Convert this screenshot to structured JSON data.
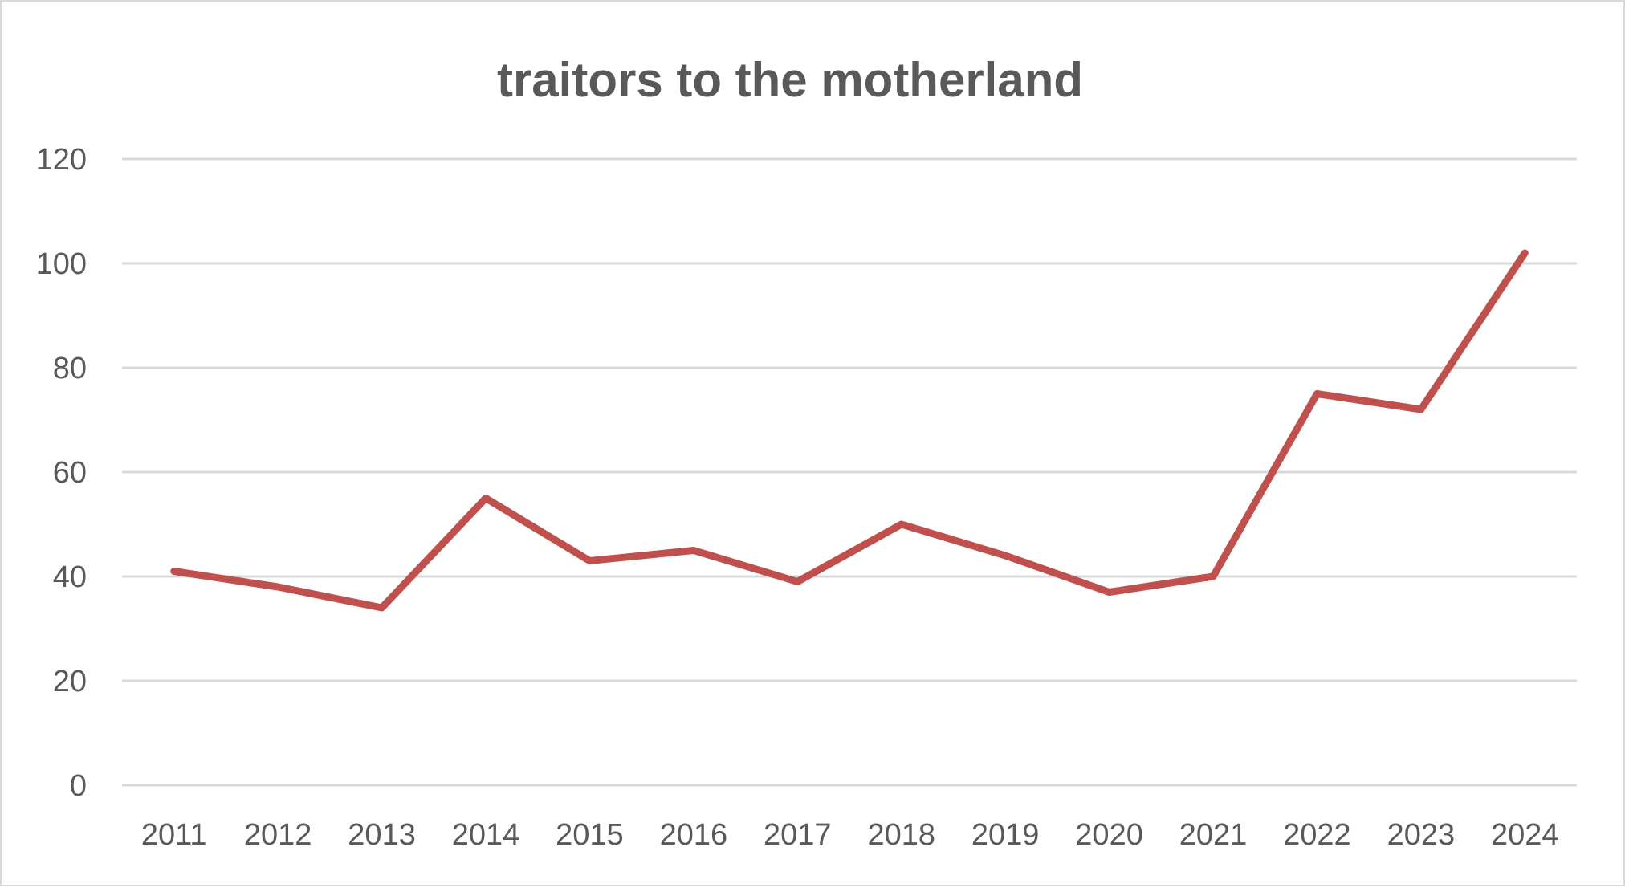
{
  "chart_data": {
    "type": "line",
    "title": "traitors to the motherland",
    "xlabel": "",
    "ylabel": "",
    "categories": [
      "2011",
      "2012",
      "2013",
      "2014",
      "2015",
      "2016",
      "2017",
      "2018",
      "2019",
      "2020",
      "2021",
      "2022",
      "2023",
      "2024"
    ],
    "series": [
      {
        "name": "traitors to the motherland",
        "color": "#C0504D",
        "values": [
          41,
          38,
          34,
          55,
          43,
          45,
          39,
          50,
          44,
          37,
          40,
          75,
          72,
          102
        ]
      }
    ],
    "ylim": [
      0,
      120
    ],
    "yticks": [
      "0",
      "20",
      "40",
      "60",
      "80",
      "100",
      "120"
    ],
    "grid": true,
    "legend": "none"
  }
}
